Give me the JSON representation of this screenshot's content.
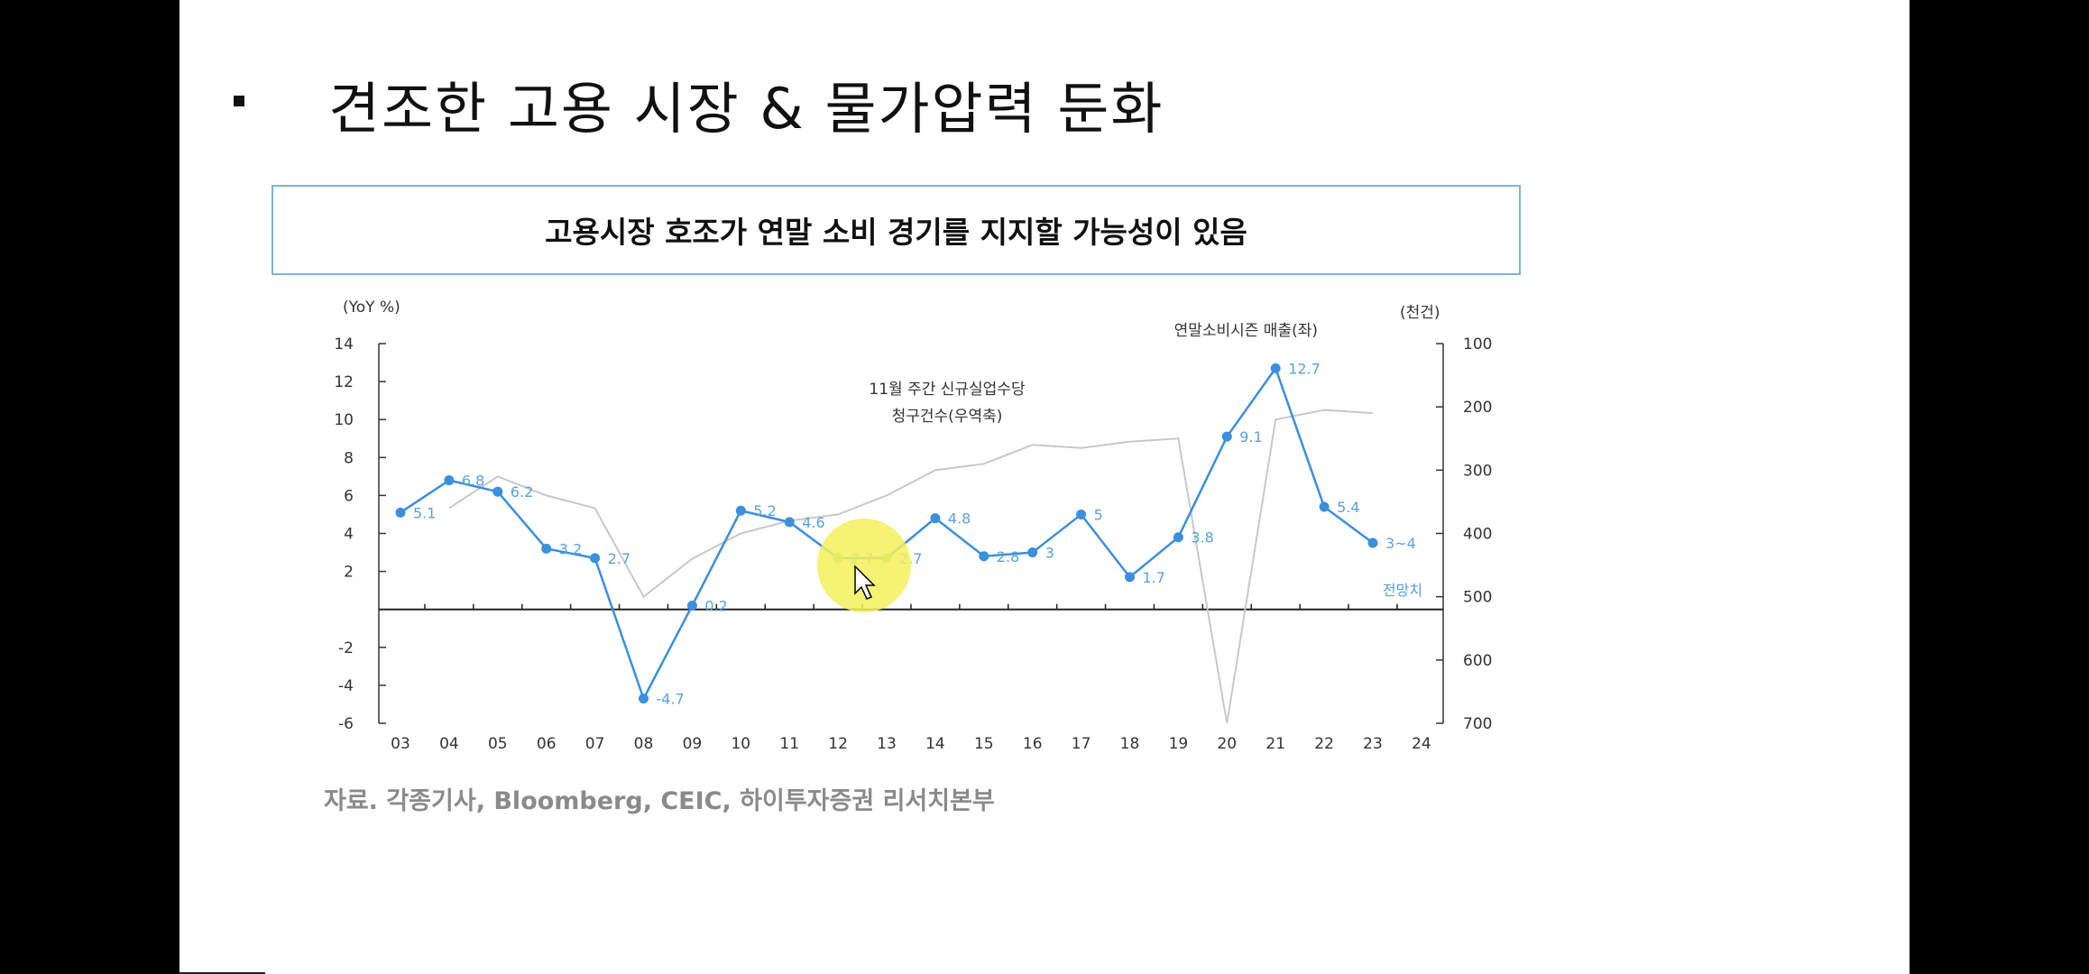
{
  "slide": {
    "title": "견조한 고용 시장 & 물가압력 둔화",
    "chart_box_title": "고용시장 호조가 연말 소비 경기를 지지할 가능성이 있음",
    "source": "자료. 각종기사, Bloomberg, CEIC, 하이투자증권 리서치본부"
  },
  "colors": {
    "primary_series": "#3a8fde",
    "secondary_series": "#c8c8c8",
    "forecast_dots": "#8cd36a",
    "cursor_highlight": "#f3f05c"
  },
  "chart_data": {
    "type": "line",
    "title": "",
    "categories": [
      "03",
      "04",
      "05",
      "06",
      "07",
      "08",
      "09",
      "10",
      "11",
      "12",
      "13",
      "14",
      "15",
      "16",
      "17",
      "18",
      "19",
      "20",
      "21",
      "22",
      "23",
      "24"
    ],
    "y_left": {
      "unit_label": "(YoY %)",
      "ylim": [
        -6,
        14
      ],
      "ticks": [
        "14",
        "12",
        "10",
        "8",
        "6",
        "4",
        "2",
        "-2",
        "-4",
        "-6"
      ]
    },
    "y_right": {
      "unit_label": "(천건)",
      "ylim": [
        700,
        100
      ],
      "inverted": true,
      "ticks": [
        "100",
        "200",
        "300",
        "400",
        "500",
        "600",
        "700"
      ]
    },
    "series": [
      {
        "name": "연말소비시즌 매출(좌)",
        "axis": "left",
        "values": [
          5.1,
          6.8,
          6.2,
          3.2,
          2.7,
          -4.7,
          0.2,
          5.2,
          4.6,
          2.7,
          2.7,
          4.8,
          2.8,
          3,
          5,
          1.7,
          3.8,
          9.1,
          12.7,
          5.4,
          3.5,
          null
        ],
        "labels": [
          "5.1",
          "6.8",
          "6.2",
          "3.2",
          "2.7",
          "-4.7",
          "0.2",
          "5.2",
          "4.6",
          "2.7",
          "2.7",
          "4.8",
          "2.8",
          "3",
          "5",
          "1.7",
          "3.8",
          "9.1",
          "12.7",
          "5.4",
          "3~4",
          ""
        ]
      },
      {
        "name": "11월 주간 신규실업수당 청구건수(우역축)",
        "axis": "right",
        "values": [
          null,
          360,
          310,
          340,
          360,
          500,
          440,
          400,
          380,
          370,
          340,
          300,
          290,
          260,
          265,
          255,
          250,
          700,
          220,
          205,
          210,
          null
        ]
      }
    ],
    "annotations": {
      "left_series_label": "연말소비시즌 매출(좌)",
      "right_series_label_line1": "11월 주간 신규실업수당",
      "right_series_label_line2": "청구건수(우역축)",
      "forecast_label": "전망치"
    }
  }
}
